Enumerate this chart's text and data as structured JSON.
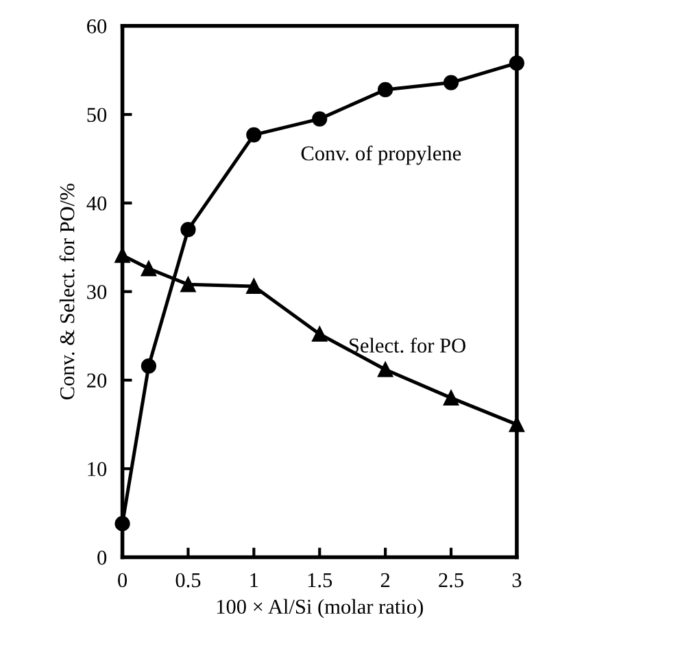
{
  "chart_data": {
    "type": "line",
    "xlabel": "100 × Al/Si (molar ratio)",
    "ylabel": "Conv. & Select. for PO/%",
    "x": [
      0,
      0.2,
      0.5,
      1,
      1.5,
      2,
      2.5,
      3
    ],
    "series": [
      {
        "name": "Conv. of propylene",
        "color": "#000000",
        "marker": "circle",
        "values": [
          3.8,
          21.6,
          37.0,
          47.7,
          49.5,
          52.8,
          53.6,
          55.8
        ]
      },
      {
        "name": "Select. for PO",
        "color": "#000000",
        "marker": "triangle",
        "values": [
          34.1,
          32.6,
          30.8,
          30.6,
          25.2,
          21.2,
          18.0,
          15.0
        ]
      }
    ],
    "xlim": [
      0,
      3
    ],
    "xticks": [
      0,
      0.5,
      1,
      1.5,
      2,
      2.5,
      3
    ],
    "ylim": [
      0,
      60
    ],
    "yticks": [
      0,
      10,
      20,
      30,
      40,
      50,
      60
    ],
    "grid": false,
    "legend": false,
    "line_style": "solid"
  }
}
